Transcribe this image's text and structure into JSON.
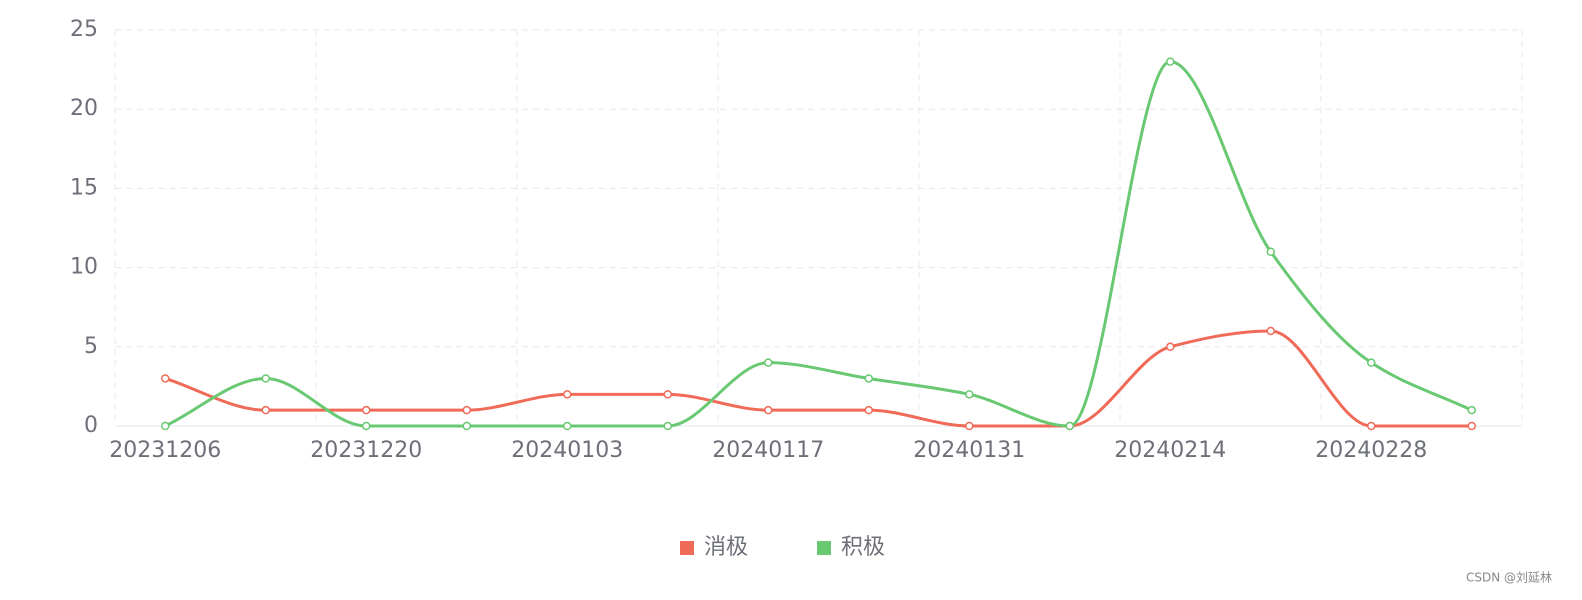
{
  "chart_data": {
    "type": "line",
    "categories": [
      "20231206",
      null,
      "20231220",
      null,
      "20240103",
      null,
      "20240117",
      null,
      "20240131",
      null,
      "20240214",
      null,
      "20240228",
      null
    ],
    "series": [
      {
        "name": "消极",
        "color": "#f06a58",
        "values": [
          3,
          1,
          1,
          1,
          2,
          2,
          1,
          1,
          0,
          0,
          5,
          6,
          0,
          0
        ]
      },
      {
        "name": "积极",
        "color": "#69c872",
        "values": [
          0,
          3,
          0,
          0,
          0,
          0,
          4,
          3,
          2,
          0,
          23,
          11,
          4,
          1
        ]
      }
    ],
    "ylim": [
      0,
      25
    ],
    "yticks": [
      0,
      5,
      10,
      15,
      20,
      25
    ],
    "grid": true,
    "smooth": true,
    "legend": "bottom",
    "footer": "CSDN @刘延林"
  }
}
